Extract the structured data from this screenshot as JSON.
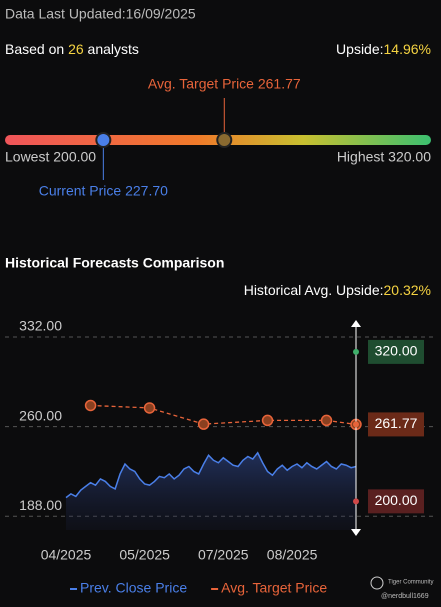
{
  "header": {
    "updated": "Data Last Updated:16/09/2025",
    "analysts_prefix": "Based on",
    "analysts": 26,
    "analysts_suffix": "analysts",
    "upside_label": "Upside:",
    "upside": "14.96%"
  },
  "gauge": {
    "min": 200,
    "max": 320,
    "min_label": "Lowest 200.00",
    "max_label": "Highest 320.00",
    "current": 227.7,
    "current_label": "Current Price 227.70",
    "target": 261.77,
    "target_label": "Avg. Target Price 261.77"
  },
  "chart_data": {
    "type": "line",
    "title": "Historical Forecasts Comparison",
    "upside_label": "Historical Avg. Upside:",
    "upside": "20.32%",
    "x": [
      0,
      1,
      2,
      3,
      4,
      5,
      6,
      7,
      8,
      9,
      10,
      11,
      12,
      13,
      14,
      15,
      16,
      17,
      18,
      19,
      20,
      21,
      22,
      23,
      24,
      25,
      26,
      27,
      28,
      29,
      30,
      31,
      32,
      33,
      34,
      35,
      36,
      37,
      38,
      39,
      40,
      41,
      42,
      43,
      44,
      45,
      46,
      47,
      48,
      49,
      50,
      51,
      52,
      53,
      54,
      55,
      56,
      57,
      58,
      59
    ],
    "xlim": [
      0,
      59
    ],
    "xticks": [
      {
        "value": 0,
        "label": "04/2025"
      },
      {
        "value": 16,
        "label": "05/2025"
      },
      {
        "value": 32,
        "label": "07/2025"
      },
      {
        "value": 46,
        "label": "08/2025"
      }
    ],
    "ylim": [
      177,
      344
    ],
    "yticks": [
      {
        "value": 188,
        "label": "188.00"
      },
      {
        "value": 260,
        "label": "260.00"
      },
      {
        "value": 332,
        "label": "332.00"
      }
    ],
    "series": [
      {
        "name": "Prev. Close Price",
        "color": "#4a7fe8",
        "values": [
          203,
          206,
          204,
          209,
          212,
          215,
          213,
          218,
          216,
          212,
          210,
          222,
          230,
          226,
          224,
          218,
          214,
          213,
          216,
          220,
          219,
          222,
          218,
          221,
          226,
          228,
          224,
          222,
          230,
          237,
          233,
          231,
          235,
          232,
          229,
          228,
          233,
          236,
          234,
          239,
          231,
          224,
          221,
          226,
          229,
          225,
          228,
          230,
          227,
          231,
          228,
          226,
          229,
          232,
          228,
          226,
          230,
          229,
          227,
          228
        ]
      },
      {
        "name": "Avg. Target Price",
        "color": "#e8643a",
        "x": [
          5,
          17,
          28,
          41,
          53,
          59
        ],
        "values": [
          277,
          275,
          262,
          265,
          265,
          261.77
        ]
      }
    ],
    "markers": [
      {
        "value": 320,
        "label": "320.00",
        "color": "#1f4d30",
        "dot": "#3fae6a"
      },
      {
        "value": 261.77,
        "label": "261.77",
        "color": "#6b2a18",
        "dot": "#e8643a"
      },
      {
        "value": 200,
        "label": "200.00",
        "color": "#5a2020",
        "dot": "#d04848"
      }
    ],
    "watermark": "Tiger Community",
    "handle": "@nerdbull1669"
  }
}
